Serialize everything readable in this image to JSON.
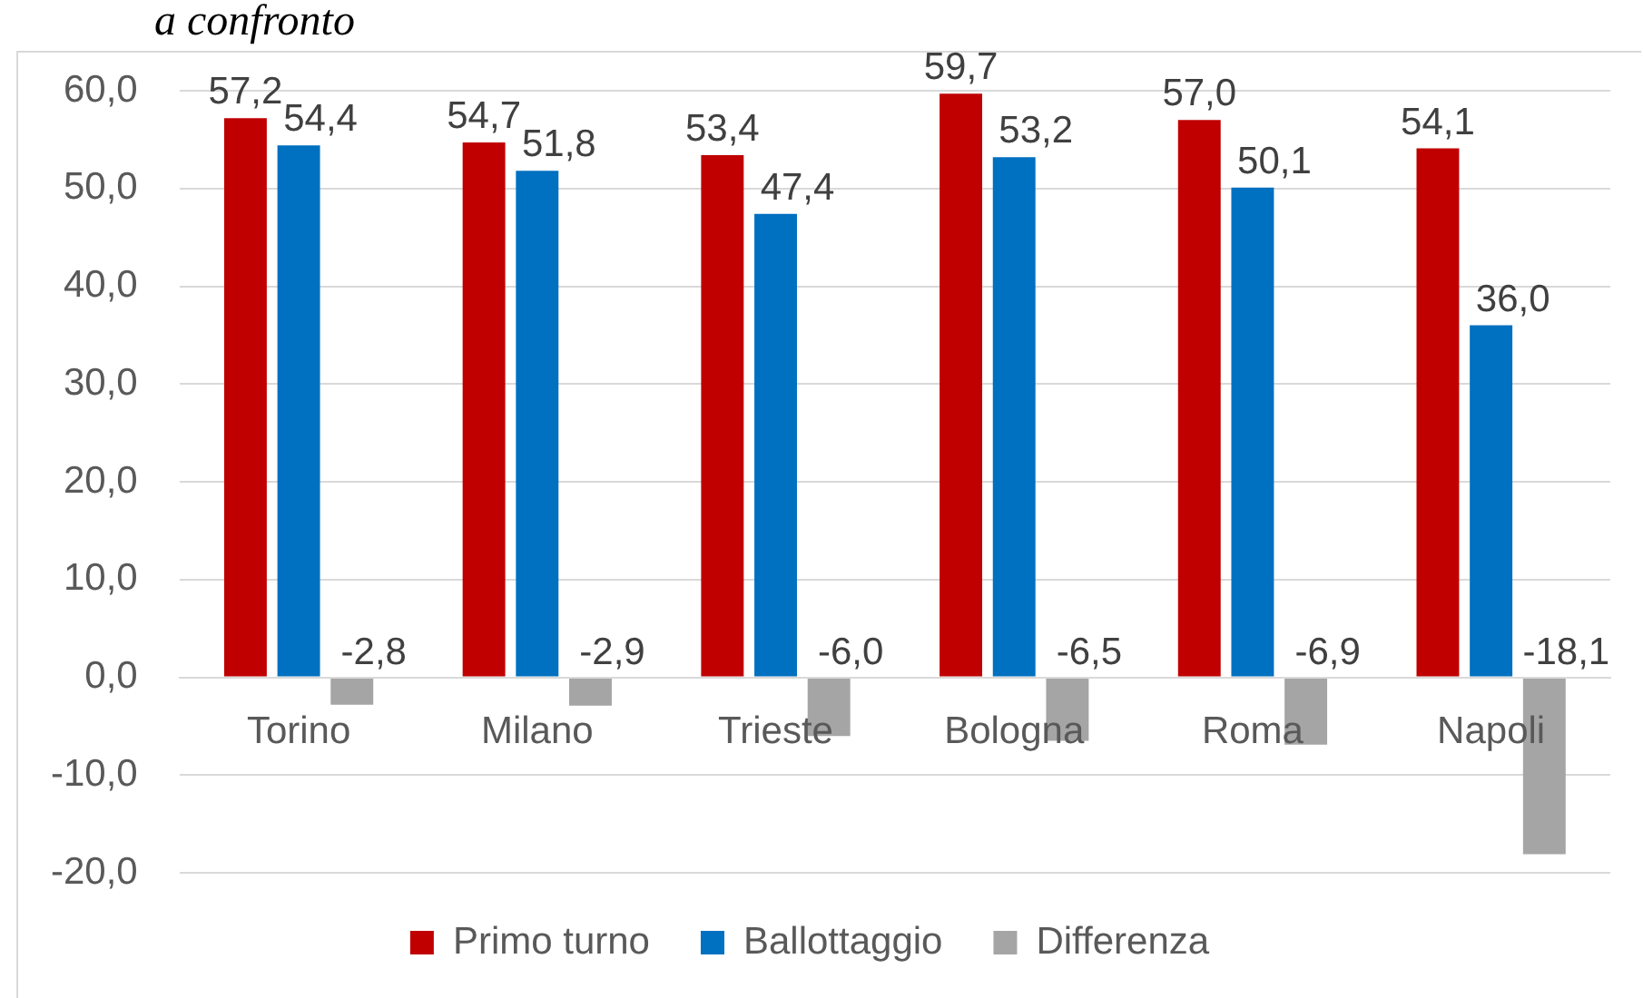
{
  "chart_data": {
    "type": "bar",
    "title": "a confronto",
    "categories": [
      "Torino",
      "Milano",
      "Trieste",
      "Bologna",
      "Roma",
      "Napoli"
    ],
    "series": [
      {
        "name": "Primo turno",
        "color": "#c00000",
        "values": [
          57.2,
          54.7,
          53.4,
          59.7,
          57.0,
          54.1
        ],
        "value_labels": [
          "57,2",
          "54,7",
          "53,4",
          "59,7",
          "57,0",
          "54,1"
        ]
      },
      {
        "name": "Ballottaggio",
        "color": "#0070c0",
        "values": [
          54.4,
          51.8,
          47.4,
          53.2,
          50.1,
          36.0
        ],
        "value_labels": [
          "54,4",
          "51,8",
          "47,4",
          "53,2",
          "50,1",
          "36,0"
        ]
      },
      {
        "name": "Differenza",
        "color": "#a5a5a5",
        "values": [
          -2.8,
          -2.9,
          -6.0,
          -6.5,
          -6.9,
          -18.1
        ],
        "value_labels": [
          "-2,8",
          "-2,9",
          "-6,0",
          "-6,5",
          "-6,9",
          "-18,1"
        ]
      }
    ],
    "ylim": [
      -20,
      60
    ],
    "yticks": [
      {
        "value": -20,
        "label": "-20,0"
      },
      {
        "value": -10,
        "label": "-10,0"
      },
      {
        "value": 0,
        "label": "0,0"
      },
      {
        "value": 10,
        "label": "10,0"
      },
      {
        "value": 20,
        "label": "20,0"
      },
      {
        "value": 30,
        "label": "30,0"
      },
      {
        "value": 40,
        "label": "40,0"
      },
      {
        "value": 50,
        "label": "50,0"
      },
      {
        "value": 60,
        "label": "60,0"
      }
    ],
    "grid": "y",
    "legend": "bottom"
  }
}
